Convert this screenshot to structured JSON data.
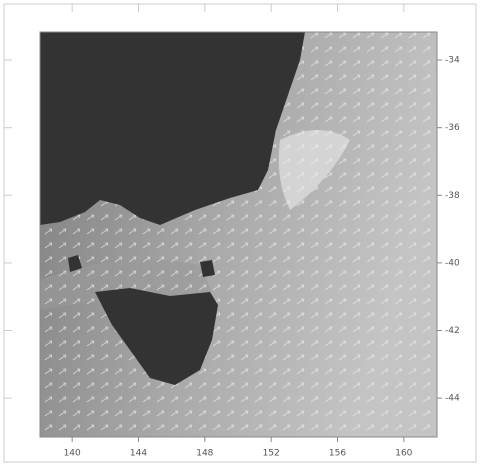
{
  "chart_data": {
    "type": "map",
    "xlim": [
      138.06,
      162
    ],
    "xticks": [
      140,
      144,
      148,
      152,
      156,
      160
    ],
    "ylim": [
      -45.15,
      -33.17
    ],
    "yticks": [
      -34,
      -36,
      -38,
      -40,
      -42,
      -44
    ]
  }
}
